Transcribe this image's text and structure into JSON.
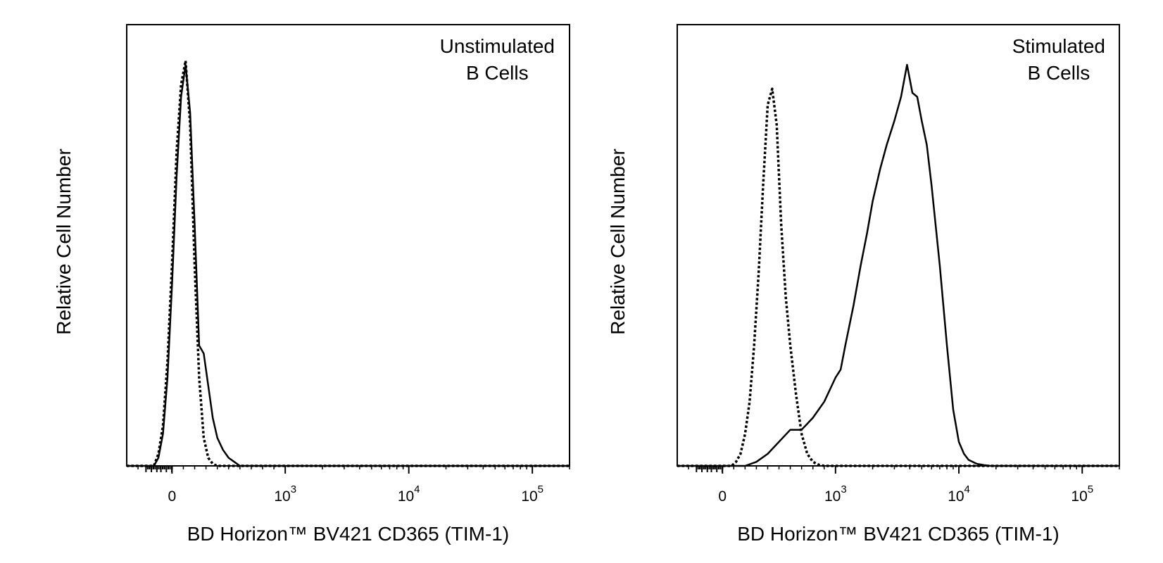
{
  "chart_data": [
    {
      "type": "histogram",
      "x_scale": "biexponential",
      "y_scale": "linear",
      "grid": false,
      "legend": "none",
      "panel_label": [
        "Unstimulated",
        "B Cells"
      ],
      "xlabel": "BD Horizon™ BV421  CD365  (TIM-1)",
      "ylabel": "Relative Cell Number",
      "x_tick_labels": [
        {
          "base": "0",
          "exp": ""
        },
        {
          "base": "10",
          "exp": "3"
        },
        {
          "base": "10",
          "exp": "4"
        },
        {
          "base": "10",
          "exp": "5"
        }
      ],
      "xlim": [
        -400,
        200000
      ],
      "ylim": [
        0,
        1.1
      ],
      "series": [
        {
          "style": "solid",
          "x": [
            -160,
            -120,
            -80,
            -40,
            0,
            40,
            80,
            120,
            160,
            200,
            240,
            280,
            320,
            360,
            400,
            450,
            500,
            550,
            600
          ],
          "y": [
            0.0,
            0.02,
            0.08,
            0.22,
            0.45,
            0.72,
            0.92,
            1.0,
            0.88,
            0.6,
            0.3,
            0.28,
            0.2,
            0.12,
            0.07,
            0.04,
            0.02,
            0.01,
            0.0
          ]
        },
        {
          "style": "dotted",
          "x": [
            -160,
            -120,
            -80,
            -40,
            0,
            40,
            80,
            120,
            160,
            200,
            240,
            280,
            320,
            360,
            400
          ],
          "y": [
            0.0,
            0.03,
            0.1,
            0.26,
            0.5,
            0.78,
            0.95,
            1.01,
            0.85,
            0.5,
            0.22,
            0.07,
            0.02,
            0.005,
            0.0
          ]
        }
      ]
    },
    {
      "type": "histogram",
      "x_scale": "biexponential",
      "y_scale": "linear",
      "grid": false,
      "legend": "none",
      "panel_label": [
        "Stimulated",
        "B Cells"
      ],
      "xlabel": "BD Horizon™ BV421  CD365  (TIM-1)",
      "ylabel": "Relative Cell Number",
      "x_tick_labels": [
        {
          "base": "0",
          "exp": ""
        },
        {
          "base": "10",
          "exp": "3"
        },
        {
          "base": "10",
          "exp": "4"
        },
        {
          "base": "10",
          "exp": "5"
        }
      ],
      "xlim": [
        -400,
        200000
      ],
      "ylim": [
        0,
        1.1
      ],
      "series": [
        {
          "style": "solid",
          "x": [
            200,
            300,
            400,
            500,
            600,
            700,
            800,
            900,
            1000,
            1100,
            1200,
            1400,
            1600,
            1800,
            2000,
            2300,
            2600,
            3000,
            3400,
            3800,
            4200,
            4600,
            5000,
            5500,
            6000,
            7000,
            8000,
            9000,
            10000,
            11000,
            12000,
            14000,
            16000,
            18000
          ],
          "y": [
            0.0,
            0.01,
            0.03,
            0.06,
            0.09,
            0.09,
            0.12,
            0.16,
            0.22,
            0.24,
            0.3,
            0.4,
            0.5,
            0.58,
            0.66,
            0.74,
            0.8,
            0.86,
            0.92,
            1.0,
            0.93,
            0.92,
            0.86,
            0.8,
            0.7,
            0.5,
            0.3,
            0.14,
            0.06,
            0.03,
            0.015,
            0.005,
            0.002,
            0.0
          ]
        },
        {
          "style": "dotted",
          "x": [
            80,
            120,
            160,
            200,
            240,
            280,
            320,
            360,
            400,
            440,
            480,
            520,
            560,
            600,
            650,
            700,
            750,
            800,
            850,
            900
          ],
          "y": [
            0.0,
            0.01,
            0.03,
            0.08,
            0.16,
            0.3,
            0.48,
            0.7,
            0.9,
            0.94,
            0.85,
            0.6,
            0.42,
            0.3,
            0.18,
            0.08,
            0.03,
            0.01,
            0.003,
            0.0
          ]
        }
      ]
    }
  ]
}
